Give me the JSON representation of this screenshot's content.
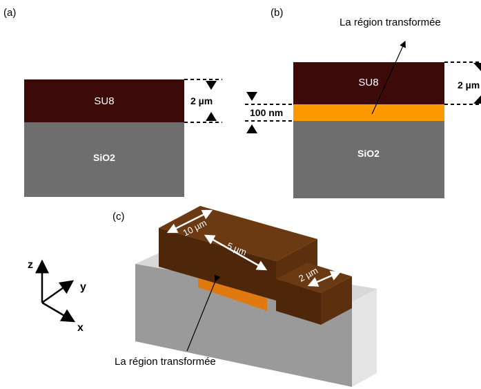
{
  "panels": {
    "a": {
      "label": "(a)",
      "top_layer": "SU8",
      "bottom_layer": "SiO2",
      "thickness": "2 µm"
    },
    "b": {
      "label": "(b)",
      "region_label": "La région transformée",
      "top_layer": "SU8",
      "bottom_layer": "SiO2",
      "thickness": "2 µm",
      "region_thickness": "100 nm"
    },
    "c": {
      "label": "(c)",
      "dim_length": "10 µm",
      "dim_region": "5 µm",
      "dim_width": "2 µm",
      "region_label": "La région transformée",
      "axes": {
        "z": "z",
        "y": "y",
        "x": "x"
      }
    }
  },
  "colors": {
    "su8": "#3d0a0a",
    "sio2": "#6e6e6e",
    "region": "#ff9900",
    "su8_3d_top": "#6b3a12",
    "su8_3d_front": "#5a2e0c",
    "substrate_top": "#d6d6d6"
  }
}
